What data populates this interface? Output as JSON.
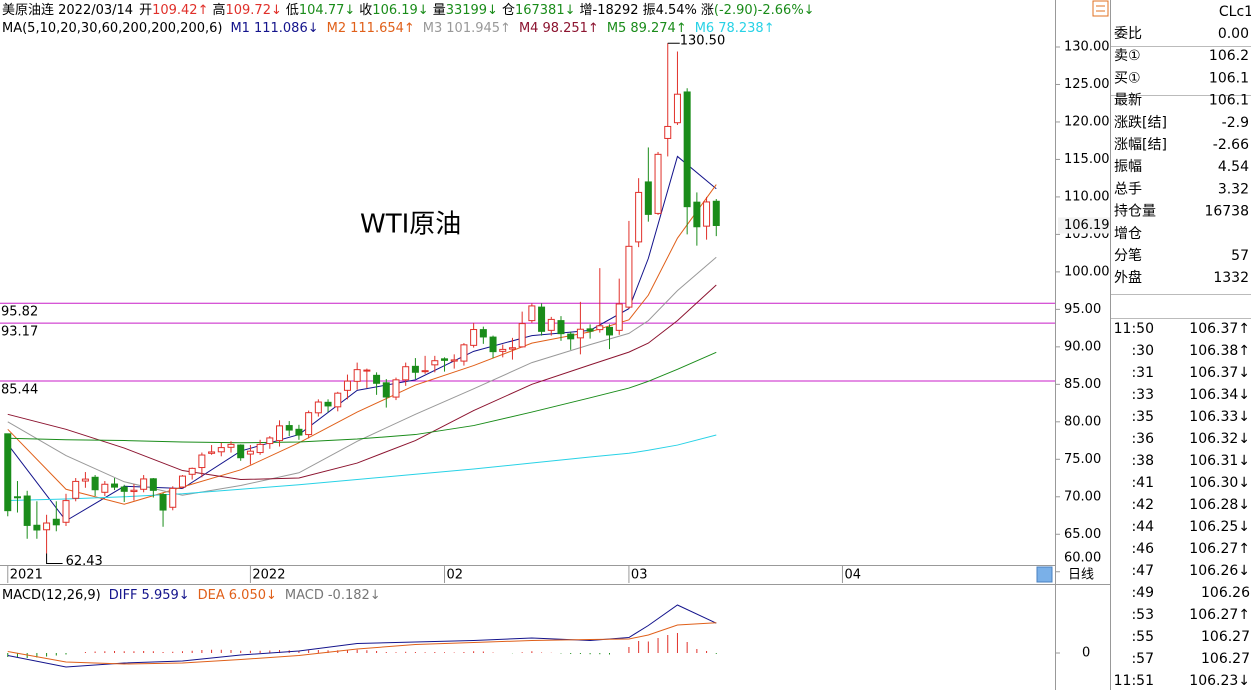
{
  "header": {
    "symbol": "美原油连 2022/03/14",
    "fields": [
      {
        "label": "开",
        "value": "109.42↑",
        "color": "#e0302a"
      },
      {
        "label": "高",
        "value": "109.72↓",
        "color": "#e0302a"
      },
      {
        "label": "低",
        "value": "104.77↓",
        "color": "#1a8c1a"
      },
      {
        "label": "收",
        "value": "106.19↓",
        "color": "#1a8c1a"
      },
      {
        "label": "量",
        "value": "33199↓",
        "color": "#1a8c1a"
      },
      {
        "label": "仓",
        "value": "167381↓",
        "color": "#1a8c1a"
      },
      {
        "label": "增",
        "value": "-18292",
        "color": "#000000"
      },
      {
        "label": "振",
        "value": "4.54%",
        "color": "#000000"
      },
      {
        "label": "涨",
        "value": "(-2.90)-2.66%↓",
        "color": "#1a8c1a"
      }
    ]
  },
  "chart_data": {
    "type": "candlestick",
    "annotation": "WTI原油",
    "xlim": [
      -0.8,
      107.9
    ],
    "xticks": [
      {
        "value": 0,
        "label": "2021"
      },
      {
        "value": 25,
        "label": "2022"
      },
      {
        "value": 45,
        "label": "02"
      },
      {
        "value": 64,
        "label": "03"
      },
      {
        "value": 86,
        "label": "04"
      }
    ],
    "ylim": [
      60.9,
      133.6
    ],
    "yticks": [
      {
        "value": 60,
        "label": "60.00"
      },
      {
        "value": 65,
        "label": "65.00"
      },
      {
        "value": 70,
        "label": "70.00"
      },
      {
        "value": 75,
        "label": "75.00"
      },
      {
        "value": 80,
        "label": "80.00"
      },
      {
        "value": 85,
        "label": "85.00"
      },
      {
        "value": 90,
        "label": "90.00"
      },
      {
        "value": 95,
        "label": "95.00"
      },
      {
        "value": 100,
        "label": "100.00"
      },
      {
        "value": 105,
        "label": "105.00"
      },
      {
        "value": 110,
        "label": "110.00"
      },
      {
        "value": 115,
        "label": "115.00"
      },
      {
        "value": 120,
        "label": "120.00"
      },
      {
        "value": 125,
        "label": "125.00"
      },
      {
        "value": 130,
        "label": "130.00"
      }
    ],
    "up_color": "#e0302a",
    "down_color": "#1a8c1a",
    "open": [
      78.4,
      70.0,
      70.1,
      66.2,
      65.6,
      67.0,
      66.6,
      69.8,
      72.1,
      72.6,
      70.6,
      71.7,
      71.3,
      70.7,
      71.0,
      72.4,
      70.3,
      68.6,
      71.3,
      73.0,
      73.9,
      75.8,
      76.0,
      76.6,
      76.9,
      75.7,
      75.9,
      77.1,
      77.5,
      79.5,
      79.0,
      78.3,
      81.2,
      82.6,
      82.0,
      84.2,
      85.4,
      86.9,
      86.2,
      85.2,
      83.3,
      85.6,
      87.4,
      86.8,
      87.6,
      88.4,
      88.1,
      88.1,
      90.2,
      92.3,
      91.3,
      89.4,
      89.7,
      90.0,
      93.5,
      95.3,
      92.2,
      93.5,
      91.7,
      91.2,
      92.4,
      92.3,
      92.6,
      92.2,
      95.3,
      104.0,
      112.0,
      107.8,
      117.8,
      119.9,
      124.0,
      109.3,
      106.1,
      109.42
    ],
    "high": [
      78.4,
      72.1,
      70.8,
      69.4,
      67.6,
      69.4,
      70.4,
      72.5,
      73.3,
      72.9,
      72.1,
      72.5,
      71.6,
      71.7,
      72.9,
      72.5,
      70.5,
      71.4,
      72.9,
      73.9,
      75.9,
      76.9,
      77.2,
      77.4,
      77.0,
      76.9,
      77.6,
      78.1,
      80.2,
      80.1,
      79.6,
      81.5,
      83.0,
      83.0,
      84.0,
      86.3,
      87.9,
      87.1,
      86.6,
      85.7,
      85.9,
      87.9,
      88.5,
      88.8,
      88.8,
      88.6,
      89.0,
      90.5,
      93.2,
      92.7,
      91.5,
      90.3,
      91.2,
      94.7,
      95.8,
      95.8,
      94.0,
      94.1,
      92.0,
      96.0,
      93.0,
      100.5,
      93.0,
      99.1,
      106.8,
      112.5,
      116.6,
      116.0,
      130.5,
      129.4,
      124.5,
      110.6,
      110.0,
      109.72
    ],
    "low": [
      67.4,
      67.9,
      64.4,
      64.4,
      62.43,
      65.4,
      66.1,
      69.4,
      71.2,
      70.1,
      70.1,
      70.9,
      69.3,
      69.5,
      70.6,
      69.9,
      66.0,
      68.2,
      71.1,
      72.3,
      72.6,
      75.6,
      75.4,
      75.9,
      74.8,
      74.3,
      75.6,
      76.4,
      76.7,
      78.1,
      77.6,
      77.8,
      80.7,
      81.3,
      81.4,
      83.0,
      84.3,
      84.5,
      83.6,
      81.9,
      82.9,
      84.8,
      85.7,
      86.4,
      86.6,
      86.7,
      87.1,
      87.5,
      89.9,
      90.4,
      88.5,
      88.6,
      88.3,
      89.9,
      93.2,
      91.5,
      91.5,
      90.8,
      89.6,
      89.0,
      91.1,
      91.9,
      89.7,
      91.6,
      95.1,
      103.3,
      106.7,
      107.6,
      115.4,
      119.6,
      105.0,
      103.5,
      104.3,
      104.77
    ],
    "close": [
      68.15,
      69.95,
      66.18,
      65.57,
      66.5,
      66.26,
      69.49,
      72.05,
      72.36,
      70.94,
      71.67,
      71.29,
      70.73,
      70.87,
      72.38,
      70.86,
      68.23,
      71.12,
      72.76,
      73.79,
      75.57,
      75.98,
      76.56,
      76.99,
      75.21,
      76.08,
      76.99,
      77.85,
      79.46,
      78.9,
      78.23,
      81.22,
      82.64,
      82.12,
      83.82,
      85.43,
      86.96,
      86.9,
      85.14,
      83.31,
      85.6,
      87.35,
      86.61,
      86.82,
      88.15,
      88.2,
      88.26,
      90.27,
      92.31,
      91.32,
      89.36,
      89.66,
      89.88,
      93.1,
      95.46,
      92.07,
      93.66,
      91.76,
      91.07,
      92.35,
      92.1,
      92.81,
      91.59,
      95.72,
      103.41,
      110.6,
      107.67,
      115.68,
      119.4,
      123.7,
      108.7,
      106.02,
      109.33,
      106.19
    ],
    "high_label": {
      "index": 68,
      "label": "130.50"
    },
    "low_label": {
      "index": 4,
      "label": "62.43"
    },
    "last_price": {
      "value": 106.19,
      "label": "106.19"
    },
    "hlines": [
      {
        "value": 95.82,
        "label": "95.82",
        "color": "#c81ec8"
      },
      {
        "value": 93.17,
        "label": "93.17",
        "color": "#c81ec8"
      },
      {
        "value": 85.44,
        "label": "85.44",
        "color": "#c81ec8"
      }
    ],
    "ma_title": "MA(5,10,20,30,60,200,200,200,6)",
    "ma_x": [
      0,
      6,
      12,
      18,
      24,
      30,
      36,
      42,
      48,
      54,
      60,
      64,
      66,
      69,
      73
    ],
    "ma": [
      {
        "name": "M1",
        "label": "111.086↓",
        "color": "#14148c",
        "values": [
          77.0,
          66.8,
          71.4,
          71.1,
          76.1,
          78.3,
          84.2,
          85.6,
          89.4,
          91.5,
          92.2,
          95.1,
          101.8,
          115.4,
          111.086
        ]
      },
      {
        "name": "M2",
        "label": "111.654↑",
        "color": "#e0601a",
        "values": [
          79.0,
          71.0,
          69.0,
          71.3,
          73.6,
          77.2,
          81.3,
          84.9,
          87.5,
          90.5,
          92.0,
          93.6,
          96.9,
          104.5,
          111.654
        ]
      },
      {
        "name": "M3",
        "label": "101.945↑",
        "color": "#999999",
        "values": [
          80.0,
          75.5,
          72.0,
          70.2,
          71.5,
          73.2,
          77.4,
          81.0,
          84.4,
          87.9,
          90.3,
          91.8,
          93.5,
          97.5,
          101.945
        ]
      },
      {
        "name": "M4",
        "label": "98.251↑",
        "color": "#8c1430",
        "values": [
          81.0,
          79.0,
          76.5,
          73.5,
          72.3,
          72.5,
          74.5,
          77.5,
          81.5,
          85.0,
          87.6,
          89.3,
          90.5,
          93.5,
          98.251
        ]
      },
      {
        "name": "M5",
        "label": "89.274↑",
        "color": "#1a8c1a",
        "values": [
          77.8,
          77.6,
          77.5,
          77.3,
          77.2,
          77.3,
          77.7,
          78.3,
          79.5,
          81.3,
          83.2,
          84.5,
          85.4,
          87.0,
          89.274
        ]
      },
      {
        "name": "M6",
        "label": "78.238↑",
        "color": "#28d2e6",
        "values": [
          69.5,
          69.7,
          70.0,
          70.4,
          71.0,
          71.6,
          72.3,
          73.0,
          73.7,
          74.5,
          75.3,
          75.8,
          76.2,
          76.9,
          78.238
        ]
      }
    ],
    "period_label": "日线"
  },
  "macd": {
    "title": "MACD(12,26,9)",
    "ylim": [
      -6.4,
      10.6
    ],
    "yticks": [
      0
    ],
    "x": [
      0,
      6,
      12,
      18,
      24,
      30,
      36,
      42,
      48,
      54,
      60,
      64,
      66,
      69,
      73
    ],
    "diff": {
      "name": "DIFF",
      "label": "5.959↓",
      "color": "#14148c",
      "values": [
        -0.5,
        -2.8,
        -2.0,
        -1.6,
        -0.4,
        0.4,
        1.9,
        2.2,
        2.5,
        3.0,
        2.5,
        3.1,
        5.5,
        9.6,
        5.959
      ]
    },
    "dea": {
      "name": "DEA",
      "label": "6.050↓",
      "color": "#e0601a",
      "values": [
        0.3,
        -1.8,
        -2.2,
        -2.0,
        -1.3,
        -0.5,
        0.8,
        1.7,
        2.1,
        2.5,
        2.7,
        2.8,
        3.6,
        5.6,
        6.05
      ]
    },
    "hist": {
      "name": "MACD",
      "label": "-0.182↓",
      "color": "#777777",
      "values": [
        -0.8,
        -0.9,
        -1.0,
        -0.9,
        -0.7,
        -0.5,
        -0.3,
        0.0,
        0.2,
        0.3,
        0.35,
        0.4,
        0.35,
        0.35,
        0.4,
        0.35,
        0.2,
        0.25,
        0.35,
        0.45,
        0.6,
        0.65,
        0.65,
        0.6,
        0.45,
        0.45,
        0.45,
        0.5,
        0.6,
        0.55,
        0.45,
        0.55,
        0.6,
        0.55,
        0.55,
        0.6,
        0.65,
        0.55,
        0.4,
        0.2,
        0.15,
        0.25,
        0.2,
        0.15,
        0.2,
        0.15,
        0.1,
        0.2,
        0.35,
        0.3,
        0.1,
        0.0,
        -0.05,
        0.15,
        0.35,
        0.1,
        0.05,
        -0.1,
        -0.2,
        -0.2,
        -0.25,
        -0.25,
        -0.3,
        0.0,
        1.2,
        2.4,
        2.3,
        3.0,
        3.6,
        4.0,
        2.2,
        0.8,
        0.4,
        -0.182
      ]
    },
    "up_color": "#e0302a",
    "down_color": "#1a8c1a"
  },
  "quote_panel": {
    "symbol": "CLc1",
    "rows": [
      {
        "label": "委比",
        "value": "0.00",
        "color": "#000000"
      },
      {
        "label": "卖①",
        "value": "106.2",
        "color": "#1a8c1a"
      },
      {
        "label": "买①",
        "value": "106.1",
        "color": "#1a8c1a"
      },
      {
        "label": "最新",
        "value": "106.1",
        "color": "#1a8c1a"
      },
      {
        "label": "涨跌[结]",
        "value": "-2.9",
        "color": "#1a8c1a"
      },
      {
        "label": "涨幅[结]",
        "value": "-2.66",
        "color": "#1a8c1a"
      },
      {
        "label": "振幅",
        "value": "4.54",
        "color": "#000000"
      },
      {
        "label": "总手",
        "value": "3.32",
        "color": "#000000"
      },
      {
        "label": "持仓量",
        "value": "16738",
        "color": "#000000"
      },
      {
        "label": "增仓"
      },
      {
        "label": "分笔",
        "value": "57",
        "color": "#000000"
      },
      {
        "label": "外盘",
        "value": "1332",
        "color": "#e0302a"
      }
    ],
    "ticks": [
      {
        "time": "11:50",
        "price": "106.37↑"
      },
      {
        "time": ":30",
        "price": "106.38↑"
      },
      {
        "time": ":31",
        "price": "106.37↓"
      },
      {
        "time": ":33",
        "price": "106.34↓"
      },
      {
        "time": ":35",
        "price": "106.33↓"
      },
      {
        "time": ":36",
        "price": "106.32↓"
      },
      {
        "time": ":38",
        "price": "106.31↓"
      },
      {
        "time": ":41",
        "price": "106.30↓"
      },
      {
        "time": ":42",
        "price": "106.28↓"
      },
      {
        "time": ":44",
        "price": "106.25↓"
      },
      {
        "time": ":46",
        "price": "106.27↑"
      },
      {
        "time": ":47",
        "price": "106.26↓"
      },
      {
        "time": ":49",
        "price": "106.26"
      },
      {
        "time": ":53",
        "price": "106.27↑"
      },
      {
        "time": ":55",
        "price": "106.27"
      },
      {
        "time": ":57",
        "price": "106.27"
      },
      {
        "time": "11:51",
        "price": "106.23↓"
      }
    ]
  }
}
